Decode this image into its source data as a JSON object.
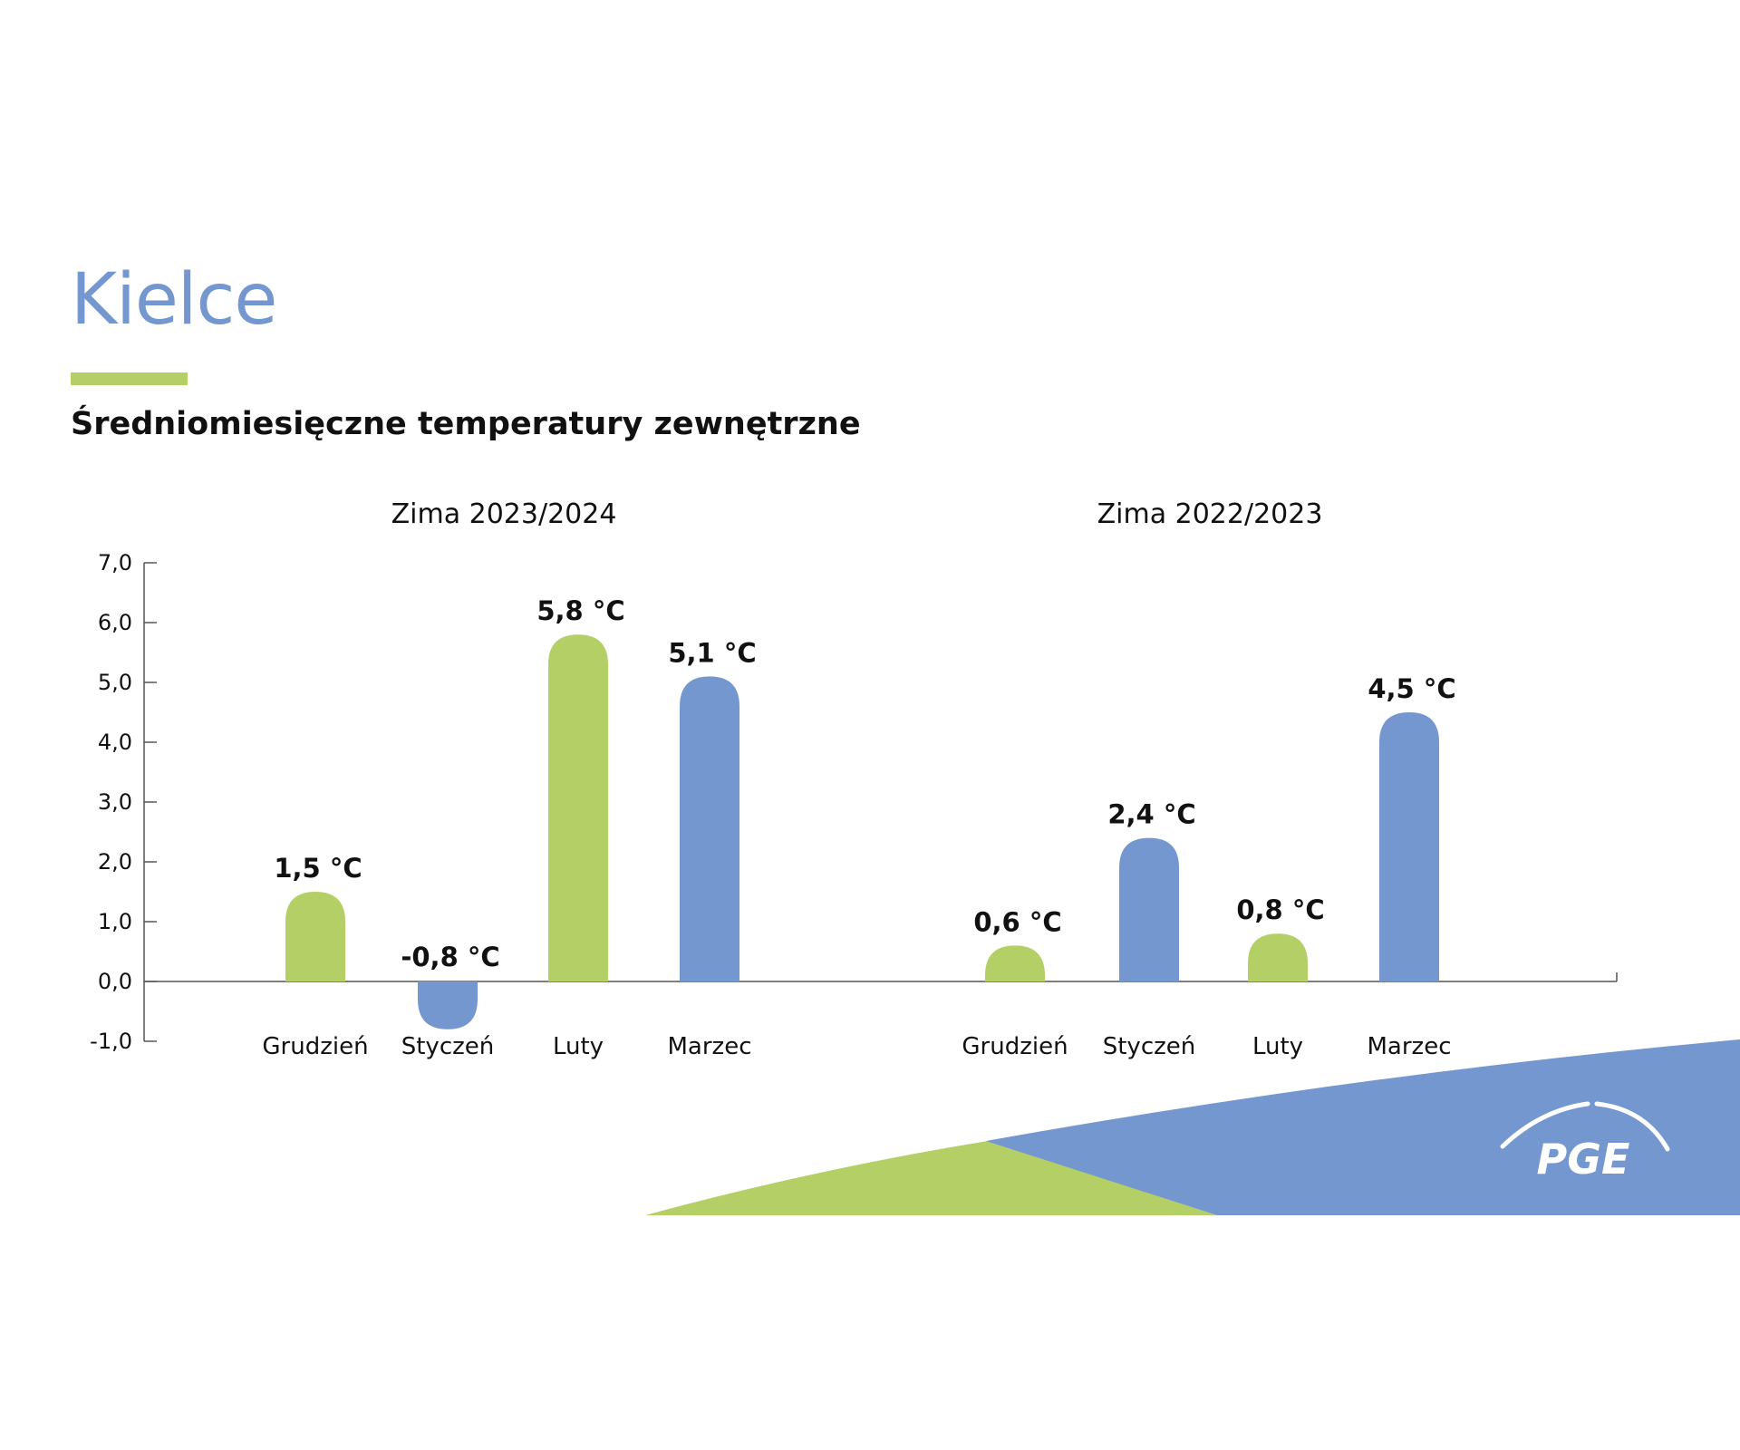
{
  "title": "Kielce",
  "subtitle": "Średniomiesięczne temperatury zewnętrzne",
  "colors": {
    "title": "#7497cf",
    "green": "#b3cf66",
    "blue": "#7497cf",
    "axis": "#555555",
    "text": "#111111"
  },
  "logo": {
    "text": "PGE"
  },
  "chart_data": {
    "type": "bar",
    "yaxis": {
      "ylim": [
        -1,
        7
      ],
      "ticks": [
        -1,
        0,
        1,
        2,
        3,
        4,
        5,
        6,
        7
      ],
      "tick_labels": [
        "-1,0",
        "0,0",
        "1,0",
        "2,0",
        "3,0",
        "4,0",
        "5,0",
        "6,0",
        "7,0"
      ]
    },
    "groups": [
      {
        "name": "Zima 2023/2024",
        "categories": [
          "Grudzień",
          "Styczeń",
          "Luty",
          "Marzec"
        ],
        "values": [
          1.5,
          -0.8,
          5.8,
          5.1
        ],
        "labels": [
          "1,5 °C",
          "-0,8 °C",
          "5,8 °C",
          "5,1 °C"
        ],
        "colors": [
          "green",
          "blue",
          "green",
          "blue"
        ]
      },
      {
        "name": "Zima 2022/2023",
        "categories": [
          "Grudzień",
          "Styczeń",
          "Luty",
          "Marzec"
        ],
        "values": [
          0.6,
          2.4,
          0.8,
          4.5
        ],
        "labels": [
          "0,6 °C",
          "2,4 °C",
          "0,8 °C",
          "4,5 °C"
        ],
        "colors": [
          "green",
          "blue",
          "green",
          "blue"
        ]
      }
    ]
  }
}
